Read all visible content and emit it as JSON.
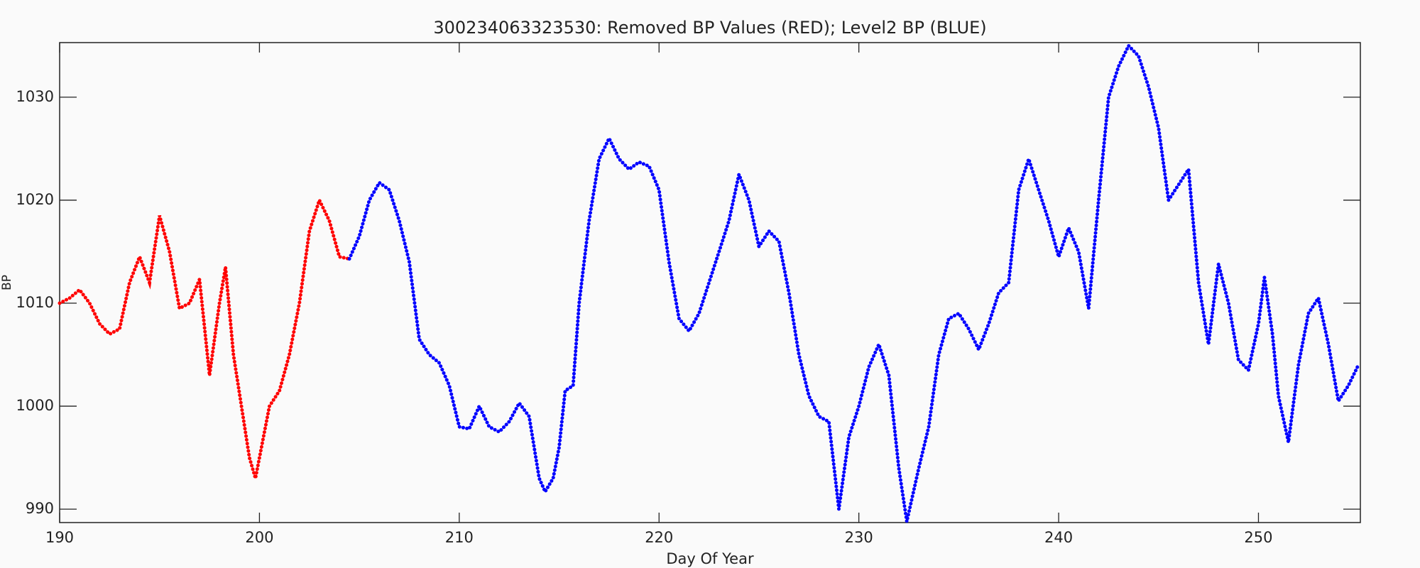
{
  "chart_data": {
    "type": "line",
    "title": "300234063323530: Removed BP Values (RED); Level2 BP (BLUE)",
    "x_label": "Day Of Year",
    "y_label": "BP",
    "xlim": [
      190,
      255.1
    ],
    "ylim": [
      988.7,
      1035.3
    ],
    "xticks": [
      190,
      200,
      210,
      220,
      230,
      240,
      250
    ],
    "yticks": [
      990,
      1000,
      1010,
      1020,
      1030
    ],
    "series": [
      {
        "color": "#ff0000",
        "x": [
          190,
          190.5,
          191,
          191.5,
          192,
          192.5,
          193,
          193.5,
          194,
          194.5,
          195,
          195.5,
          196,
          196.5,
          197,
          197.5,
          198,
          198.3,
          198.7,
          199.5,
          199.8,
          200.5,
          201,
          201.5,
          202,
          202.5,
          203,
          203.5,
          204,
          204.5
        ],
        "values": [
          1010,
          1010.5,
          1011.3,
          1010,
          1008,
          1007,
          1007.5,
          1012,
          1014.5,
          1012,
          1018.5,
          1015,
          1009.5,
          1010,
          1012.3,
          1003,
          1010,
          1013.5,
          1005,
          995,
          993,
          1000,
          1001.5,
          1005,
          1010,
          1017,
          1020,
          1018,
          1014.5,
          1014.3
        ]
      },
      {
        "color": "#0000ff",
        "x": [
          204.5,
          205,
          205.5,
          206,
          206.5,
          207,
          207.5,
          208,
          208.5,
          209,
          209.5,
          210,
          210.5,
          211,
          211.5,
          212,
          212.5,
          213,
          213.5,
          214,
          214.3,
          214.7,
          215,
          215.3,
          215.7,
          216,
          216.5,
          217,
          217.5,
          218,
          218.5,
          219,
          219.5,
          220,
          220.5,
          221,
          221.5,
          222,
          222.5,
          223,
          223.5,
          224,
          224.5,
          225,
          225.5,
          226,
          226.5,
          227,
          227.5,
          228,
          228.5,
          229,
          229.5,
          230,
          230.5,
          231,
          231.5,
          232,
          232.4,
          233,
          233.5,
          234,
          234.5,
          235,
          235.5,
          236,
          236.5,
          237,
          237.5,
          238,
          238.5,
          239,
          239.5,
          240,
          240.5,
          241,
          241.5,
          242,
          242.5,
          243,
          243.5,
          244,
          244.5,
          245,
          245.5,
          246,
          246.5,
          247,
          247.5,
          248,
          248.5,
          249,
          249.5,
          250,
          250.3,
          250.7,
          251,
          251.5,
          252,
          252.5,
          253,
          253.5,
          254,
          254.5,
          255
        ],
        "values": [
          1014.3,
          1016.5,
          1020,
          1021.7,
          1021,
          1018,
          1014,
          1006.5,
          1005,
          1004.2,
          1002,
          998,
          997.8,
          1000,
          998,
          997.5,
          998.5,
          1000.3,
          999,
          993,
          991.7,
          993,
          996,
          1001.5,
          1002,
          1010,
          1018,
          1024,
          1026,
          1024,
          1023,
          1023.7,
          1023.3,
          1021,
          1014,
          1008.5,
          1007.3,
          1009,
          1012,
          1015,
          1018,
          1022.5,
          1020,
          1015.5,
          1017,
          1016,
          1011,
          1005,
          1001,
          999,
          998.5,
          990,
          997,
          1000,
          1003.8,
          1006,
          1003,
          994,
          988.8,
          994,
          998,
          1005,
          1008.5,
          1009,
          1007.5,
          1005.5,
          1008,
          1011,
          1012,
          1021,
          1024,
          1021,
          1018,
          1014.5,
          1017.3,
          1015,
          1009.5,
          1020,
          1030,
          1033,
          1035,
          1034,
          1031,
          1027,
          1020,
          1021.5,
          1023,
          1012,
          1006,
          1013.8,
          1010,
          1004.5,
          1003.5,
          1008,
          1012.5,
          1007,
          1001,
          996.5,
          1004,
          1009,
          1010.5,
          1006,
          1000.5,
          1002,
          1004
        ]
      }
    ]
  }
}
